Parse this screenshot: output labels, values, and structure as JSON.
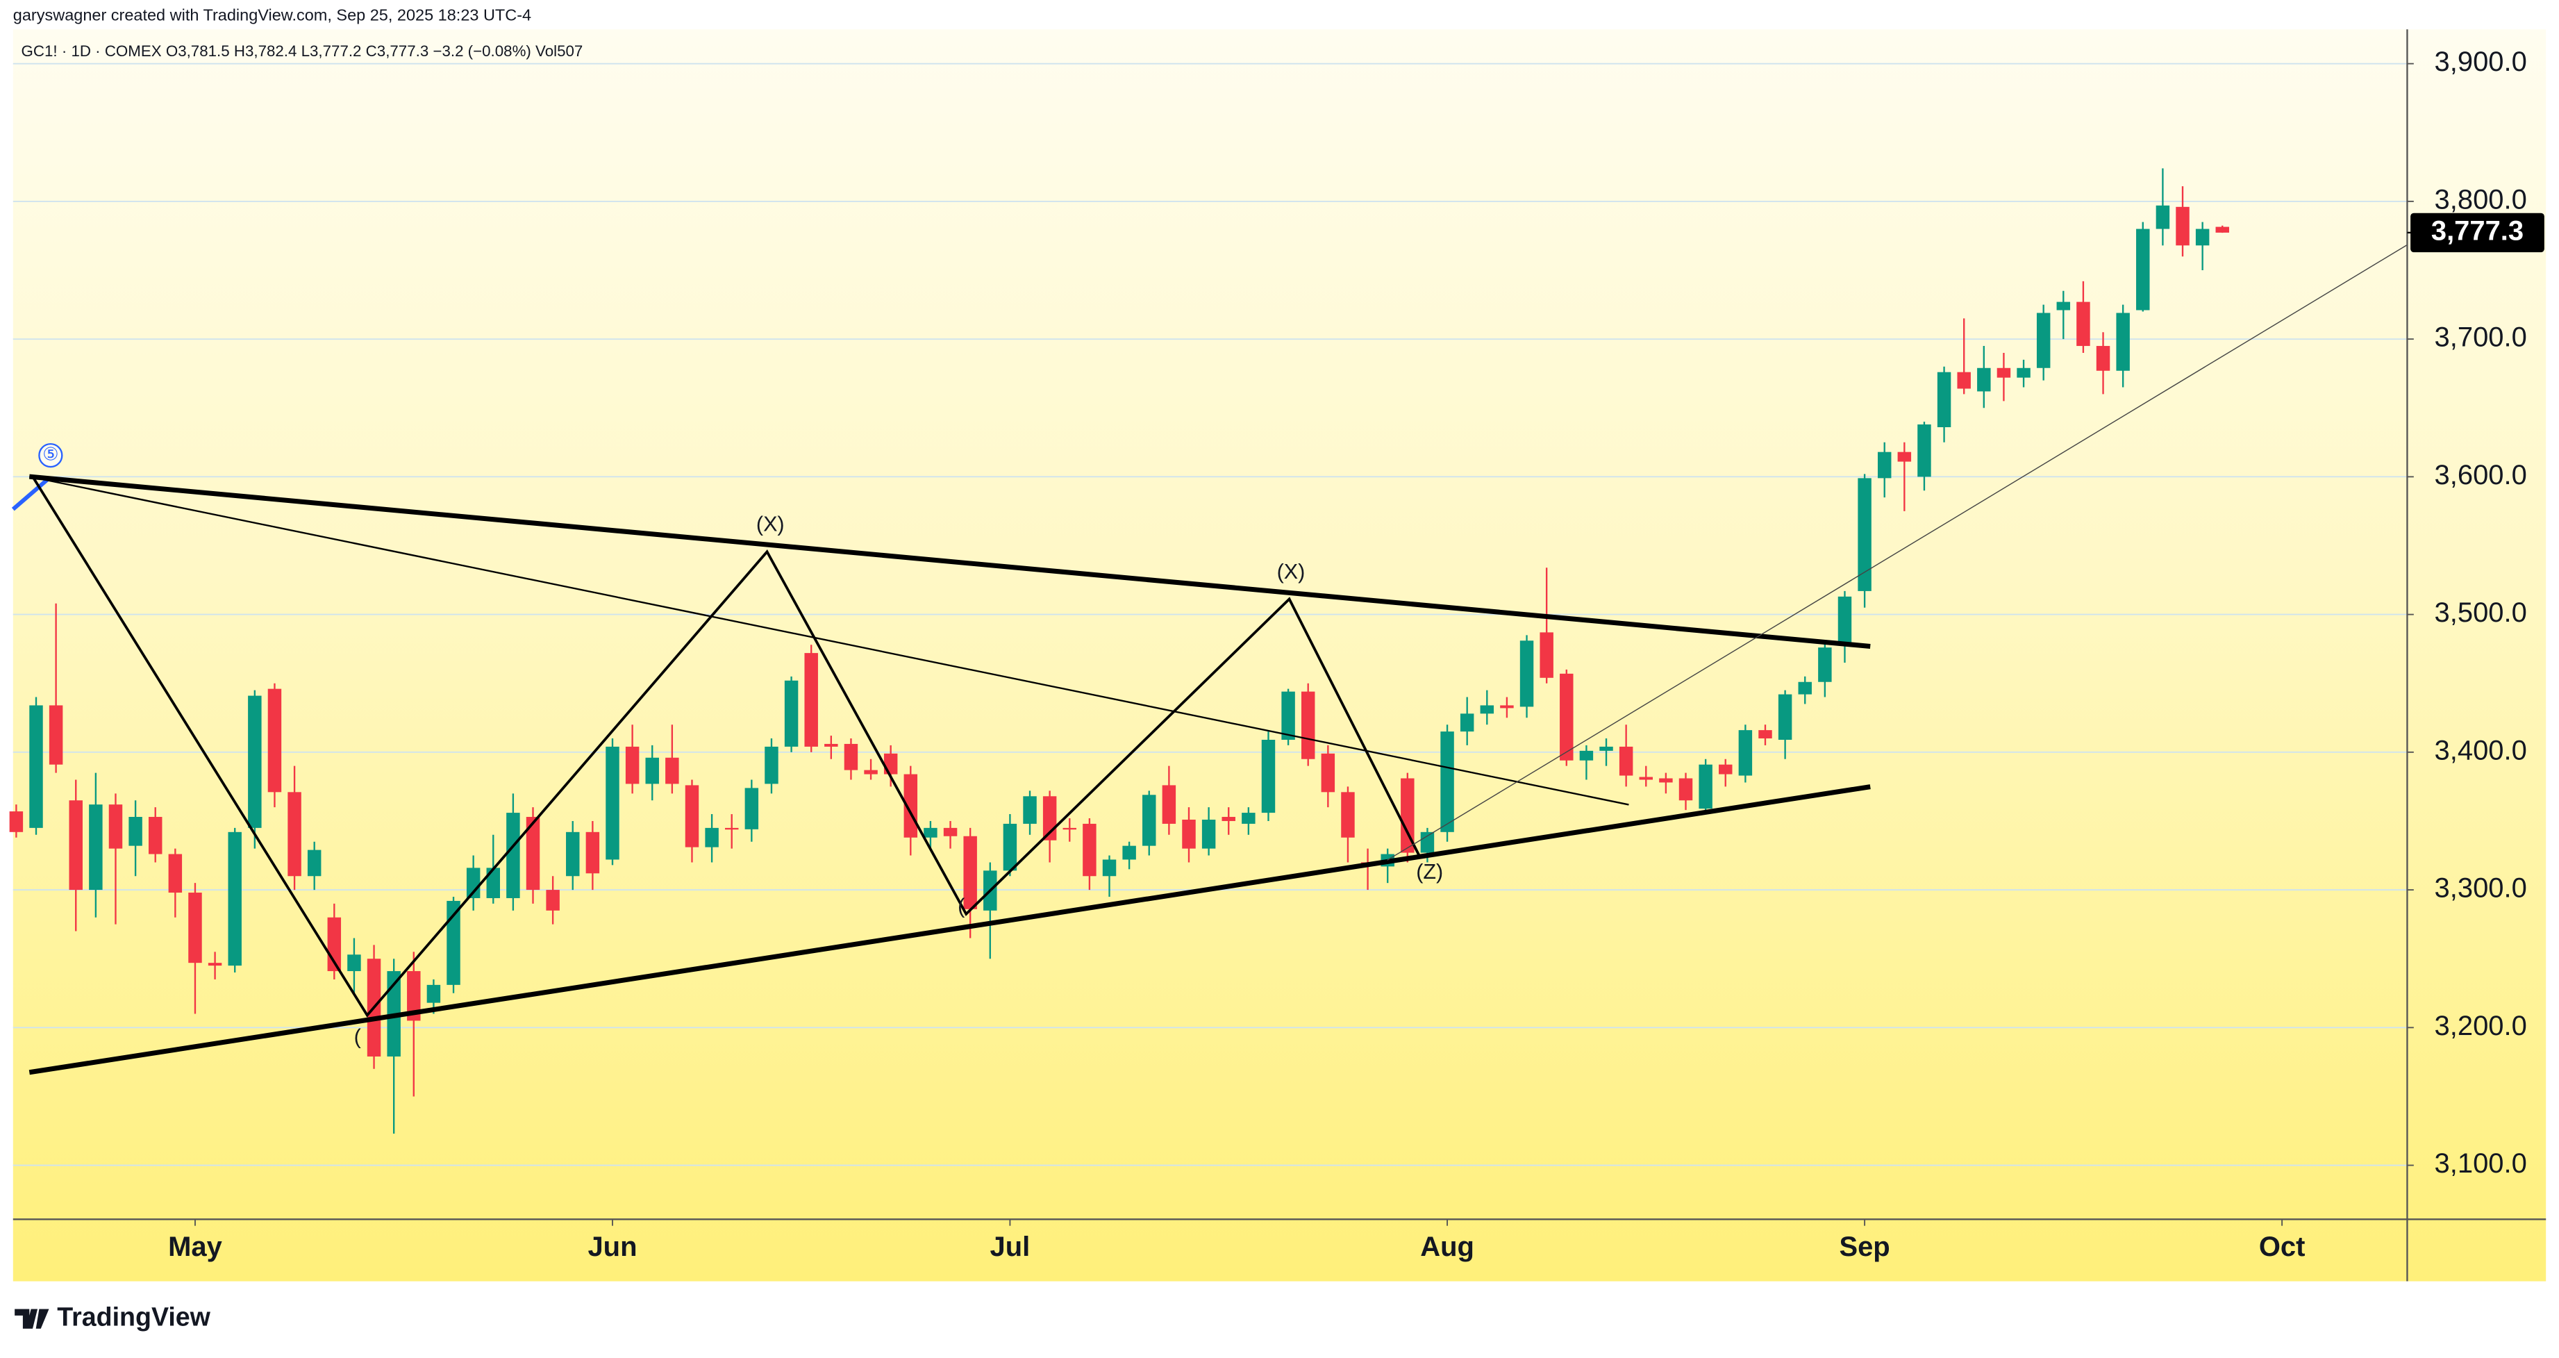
{
  "header": "garyswagner created with TradingView.com, Sep 25, 2025 18:23 UTC-4",
  "footer": {
    "brand": "TradingView"
  },
  "chart_data": {
    "type": "candlestick",
    "legend": "GC1! · 1D · COMEX  O3,781.5  H3,782.4  L3,777.2  C3,777.3  −3.2 (−0.08%)  Vol507",
    "up_color": "#089981",
    "down_color": "#f23645",
    "open": [
      3357,
      3345,
      3434,
      3365,
      3300,
      3362,
      3332,
      3353,
      3326,
      3298,
      3247,
      3245,
      3345,
      3446,
      3371,
      3310,
      3280,
      3241,
      3250,
      3179,
      3241,
      3218,
      3231,
      3294,
      3294,
      3294,
      3353,
      3300,
      3310,
      3342,
      3322,
      3404,
      3377,
      3396,
      3376,
      3331,
      3345,
      3344,
      3377,
      3404,
      3472,
      3406,
      3406,
      3387,
      3399,
      3384,
      3338,
      3345,
      3339,
      3285,
      3314,
      3348,
      3368,
      3345,
      3348,
      3310,
      3322,
      3332,
      3376,
      3351,
      3330,
      3353,
      3348,
      3356,
      3409,
      3444,
      3399,
      3371,
      3320,
      3317,
      3381,
      3327,
      3342,
      3415,
      3428,
      3434,
      3433,
      3487,
      3457,
      3394,
      3401,
      3404,
      3382,
      3381,
      3381,
      3359,
      3391,
      3383,
      3416,
      3409,
      3442,
      3451,
      3478,
      3517,
      3599,
      3618,
      3600,
      3636,
      3676,
      3662,
      3679,
      3672,
      3679,
      3721,
      3727,
      3695,
      3677,
      3721,
      3780,
      3796,
      3768,
      3781.5
    ],
    "high": [
      3362,
      3440,
      3508,
      3380,
      3385,
      3370,
      3365,
      3360,
      3330,
      3305,
      3255,
      3345,
      3445,
      3450,
      3390,
      3335,
      3290,
      3265,
      3260,
      3250,
      3255,
      3235,
      3295,
      3325,
      3340,
      3370,
      3360,
      3310,
      3350,
      3350,
      3410,
      3420,
      3405,
      3420,
      3380,
      3355,
      3355,
      3380,
      3410,
      3455,
      3478,
      3412,
      3410,
      3395,
      3405,
      3390,
      3350,
      3350,
      3345,
      3320,
      3355,
      3372,
      3372,
      3352,
      3352,
      3325,
      3335,
      3372,
      3390,
      3360,
      3360,
      3360,
      3360,
      3415,
      3446,
      3450,
      3405,
      3375,
      3330,
      3330,
      3385,
      3345,
      3420,
      3440,
      3445,
      3440,
      3485,
      3534,
      3460,
      3405,
      3410,
      3420,
      3390,
      3385,
      3385,
      3395,
      3395,
      3420,
      3420,
      3445,
      3455,
      3480,
      3517,
      3602,
      3625,
      3625,
      3640,
      3680,
      3715,
      3695,
      3690,
      3685,
      3725,
      3735,
      3742,
      3705,
      3725,
      3785,
      3824,
      3811,
      3785,
      3782.4
    ],
    "low": [
      3338,
      3340,
      3385,
      3270,
      3280,
      3275,
      3310,
      3320,
      3280,
      3210,
      3235,
      3240,
      3330,
      3360,
      3300,
      3300,
      3235,
      3225,
      3170,
      3123,
      3150,
      3210,
      3225,
      3285,
      3290,
      3285,
      3290,
      3275,
      3300,
      3300,
      3318,
      3370,
      3365,
      3370,
      3320,
      3320,
      3330,
      3335,
      3370,
      3400,
      3400,
      3395,
      3380,
      3380,
      3375,
      3325,
      3330,
      3330,
      3265,
      3250,
      3310,
      3340,
      3320,
      3335,
      3300,
      3295,
      3315,
      3325,
      3340,
      3320,
      3325,
      3340,
      3340,
      3350,
      3405,
      3390,
      3360,
      3320,
      3300,
      3305,
      3320,
      3320,
      3335,
      3405,
      3420,
      3425,
      3425,
      3450,
      3390,
      3380,
      3390,
      3375,
      3375,
      3370,
      3358,
      3355,
      3375,
      3378,
      3405,
      3395,
      3435,
      3440,
      3465,
      3505,
      3585,
      3575,
      3590,
      3625,
      3660,
      3650,
      3655,
      3665,
      3670,
      3700,
      3690,
      3660,
      3665,
      3720,
      3768,
      3760,
      3750,
      3777.2
    ],
    "close": [
      3342,
      3434,
      3391,
      3300,
      3362,
      3330,
      3353,
      3326,
      3298,
      3247,
      3245,
      3342,
      3441,
      3371,
      3310,
      3329,
      3241,
      3253,
      3179,
      3241,
      3205,
      3231,
      3292,
      3316,
      3316,
      3356,
      3300,
      3285,
      3342,
      3312,
      3404,
      3377,
      3396,
      3377,
      3331,
      3345,
      3344,
      3374,
      3404,
      3452,
      3404,
      3404,
      3387,
      3384,
      3384,
      3338,
      3345,
      3339,
      3286,
      3314,
      3348,
      3368,
      3336,
      3344,
      3310,
      3322,
      3332,
      3369,
      3348,
      3330,
      3351,
      3350,
      3356,
      3409,
      3444,
      3395,
      3371,
      3338,
      3318,
      3326,
      3327,
      3342,
      3415,
      3428,
      3434,
      3432,
      3481,
      3454,
      3394,
      3401,
      3404,
      3383,
      3380,
      3378,
      3365,
      3391,
      3384,
      3416,
      3410,
      3442,
      3451,
      3476,
      3513,
      3599,
      3618,
      3611,
      3638,
      3676,
      3664,
      3679,
      3672,
      3679,
      3719,
      3727,
      3695,
      3677,
      3719,
      3780,
      3797,
      3768,
      3780,
      3777.3
    ],
    "xlim": [
      -0.16,
      120.3
    ],
    "xticks": [
      {
        "value": 9,
        "label": "May"
      },
      {
        "value": 30,
        "label": "Jun"
      },
      {
        "value": 50,
        "label": "Jul"
      },
      {
        "value": 72,
        "label": "Aug"
      },
      {
        "value": 93,
        "label": "Sep"
      },
      {
        "value": 114,
        "label": "Oct"
      }
    ],
    "ylim": [
      3060.8,
      3924.9
    ],
    "yticks": [
      {
        "value": 3100,
        "label": "3,100.0"
      },
      {
        "value": 3200,
        "label": "3,200.0"
      },
      {
        "value": 3300,
        "label": "3,300.0"
      },
      {
        "value": 3400,
        "label": "3,400.0"
      },
      {
        "value": 3500,
        "label": "3,500.0"
      },
      {
        "value": 3600,
        "label": "3,600.0"
      },
      {
        "value": 3700,
        "label": "3,700.0"
      },
      {
        "value": 3800,
        "label": "3,800.0"
      },
      {
        "value": 3900,
        "label": "3,900.0"
      }
    ],
    "last_price": {
      "value": 3777.3,
      "label": "3,777.3"
    },
    "grid": true,
    "annotations": [
      "⑤",
      "(X)",
      "(X)",
      "(Z)",
      "(",
      "("
    ]
  }
}
